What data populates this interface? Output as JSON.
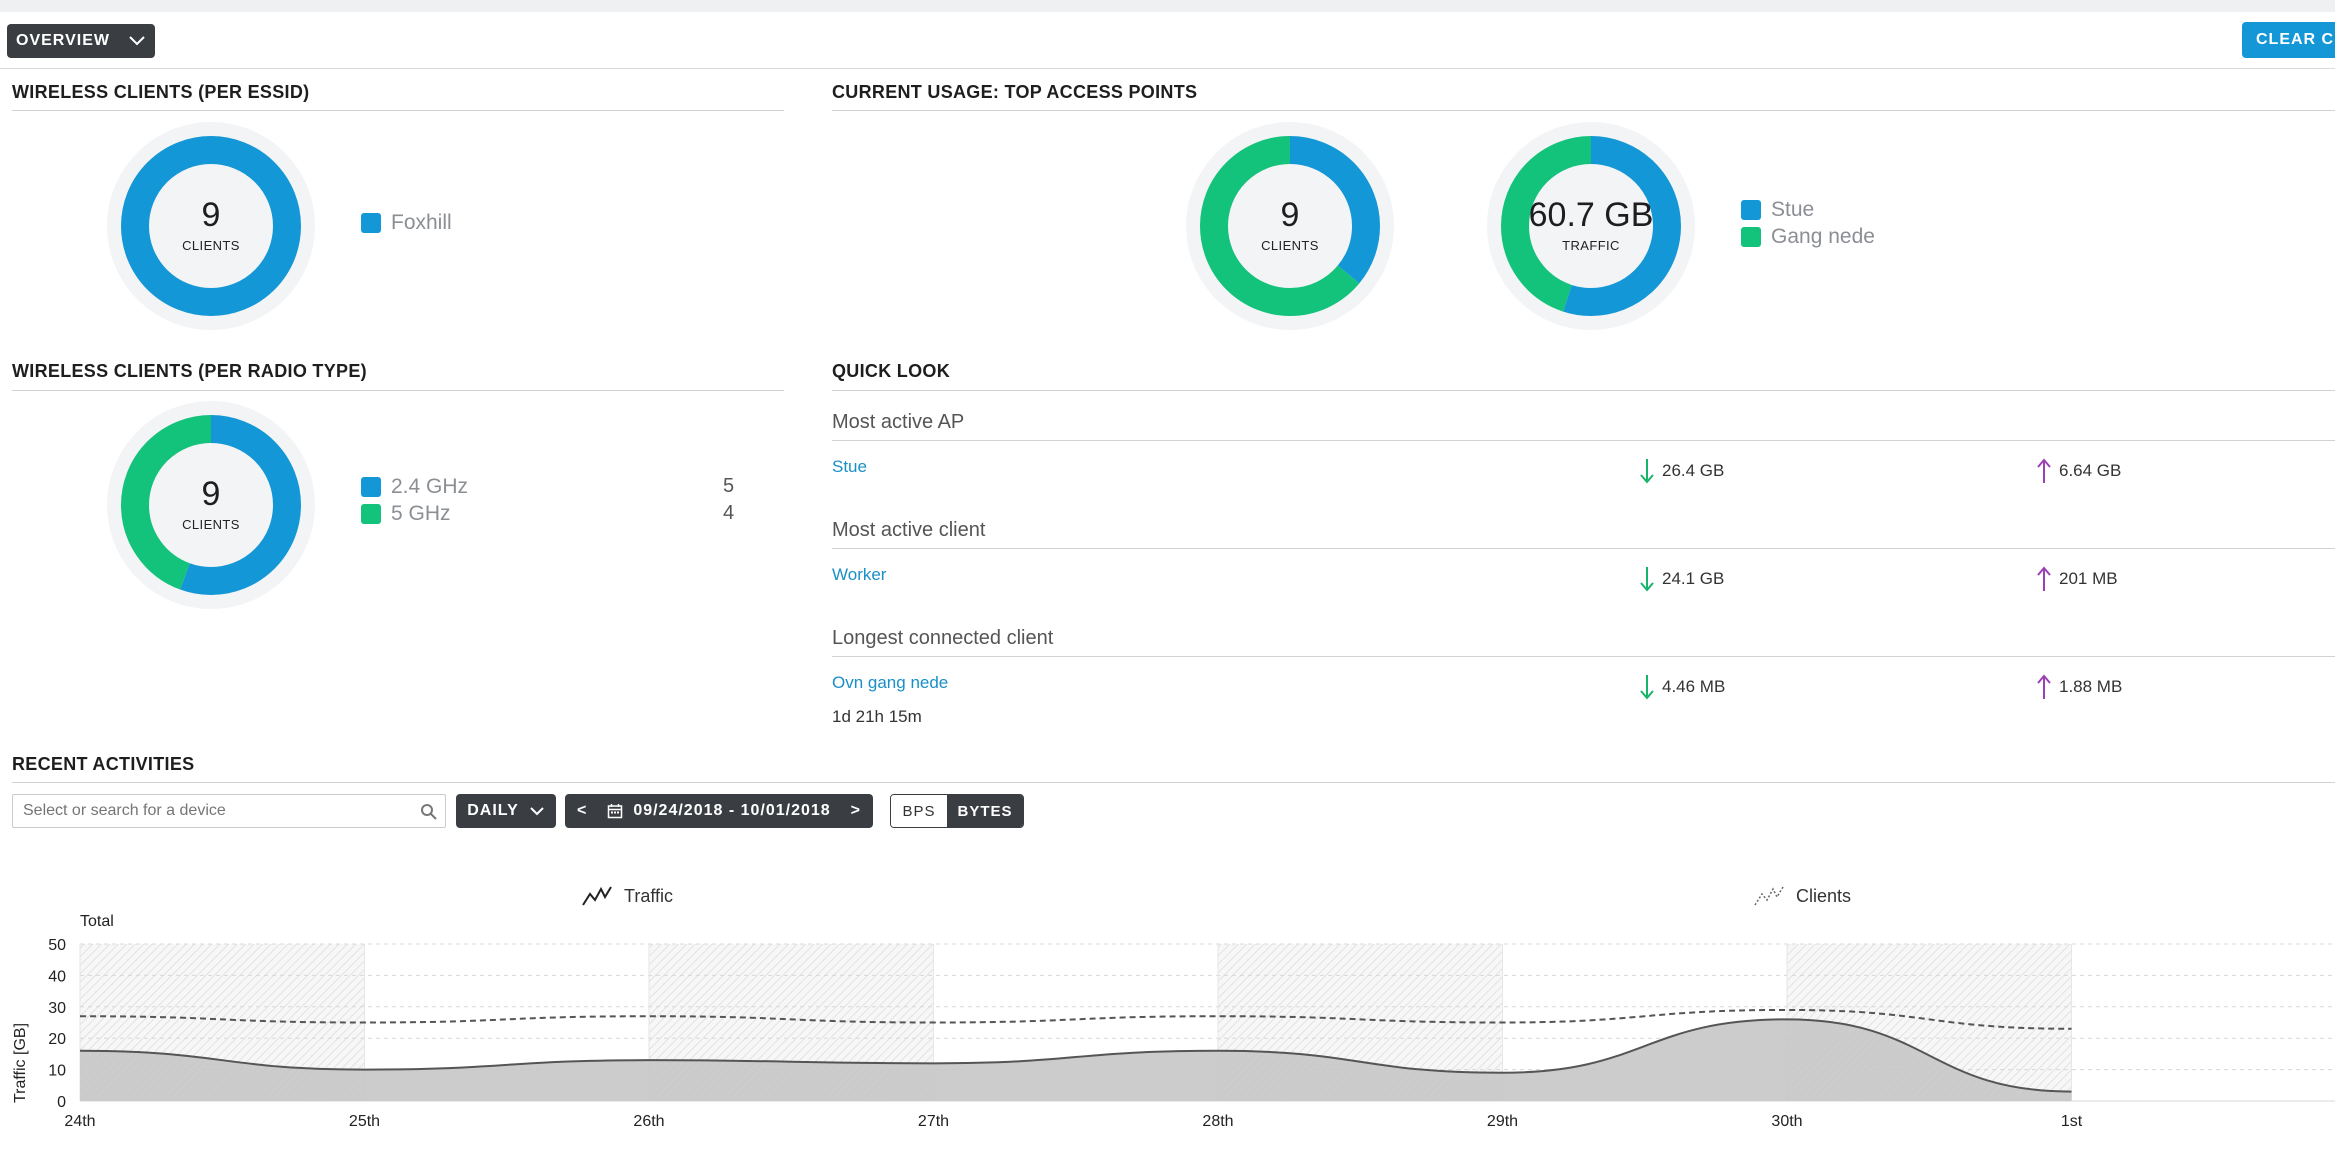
{
  "header": {
    "overview_label": "OVERVIEW",
    "clear_label": "CLEAR CU"
  },
  "colors": {
    "blue": "#1497d6",
    "green": "#13c27b",
    "dark": "#3a3e43",
    "link": "#1a8fc7"
  },
  "essid": {
    "title": "WIRELESS CLIENTS (PER ESSID)",
    "count": "9",
    "sub": "CLIENTS",
    "legend": [
      {
        "label": "Foxhill",
        "color": "#1497d6"
      }
    ],
    "fractions": [
      1.0
    ]
  },
  "top_ap": {
    "title": "CURRENT USAGE: TOP ACCESS POINTS",
    "clients": {
      "count": "9",
      "sub": "CLIENTS",
      "fractions": [
        0.36,
        0.64
      ]
    },
    "traffic": {
      "count": "60.7 GB",
      "sub": "TRAFFIC",
      "fractions": [
        0.55,
        0.45
      ]
    },
    "legend": [
      {
        "label": "Stue",
        "color": "#1497d6"
      },
      {
        "label": "Gang nede",
        "color": "#13c27b"
      }
    ]
  },
  "radio": {
    "title": "WIRELESS CLIENTS (PER RADIO TYPE)",
    "count": "9",
    "sub": "CLIENTS",
    "legend": [
      {
        "label": "2.4 GHz",
        "value": "5",
        "color": "#1497d6"
      },
      {
        "label": "5 GHz",
        "value": "4",
        "color": "#13c27b"
      }
    ],
    "fractions": [
      0.5556,
      0.4444
    ]
  },
  "quick": {
    "title": "QUICK LOOK",
    "rows": [
      {
        "label": "Most active AP",
        "name": "Stue",
        "down": "26.4 GB",
        "up": "6.64 GB"
      },
      {
        "label": "Most active client",
        "name": "Worker",
        "down": "24.1 GB",
        "up": "201 MB"
      },
      {
        "label": "Longest connected client",
        "name": "Ovn gang nede",
        "down": "4.46 MB",
        "up": "1.88 MB",
        "extra": "1d 21h 15m"
      }
    ]
  },
  "recent": {
    "title": "RECENT ACTIVITIES",
    "search_placeholder": "Select or search for a device",
    "period_label": "DAILY",
    "date_range": "09/24/2018 - 10/01/2018",
    "prev": "<",
    "next": ">",
    "bps_label": "BPS",
    "bytes_label": "BYTES"
  },
  "chart_data": {
    "type": "area",
    "legend": [
      "Traffic",
      "Clients"
    ],
    "subtitle": "Total",
    "ylabel": "Traffic [GB]",
    "ylim": [
      0,
      50
    ],
    "yticks": [
      0,
      10,
      20,
      30,
      40,
      50
    ],
    "categories": [
      "24th",
      "25th",
      "26th",
      "27th",
      "28th",
      "29th",
      "30th",
      "1st"
    ],
    "series": [
      {
        "name": "Traffic",
        "values": [
          16,
          10,
          13,
          12,
          16,
          9,
          26,
          3
        ]
      },
      {
        "name": "Clients",
        "values": [
          27,
          25,
          27,
          25,
          27,
          25,
          29,
          23
        ]
      }
    ],
    "grid": true
  }
}
